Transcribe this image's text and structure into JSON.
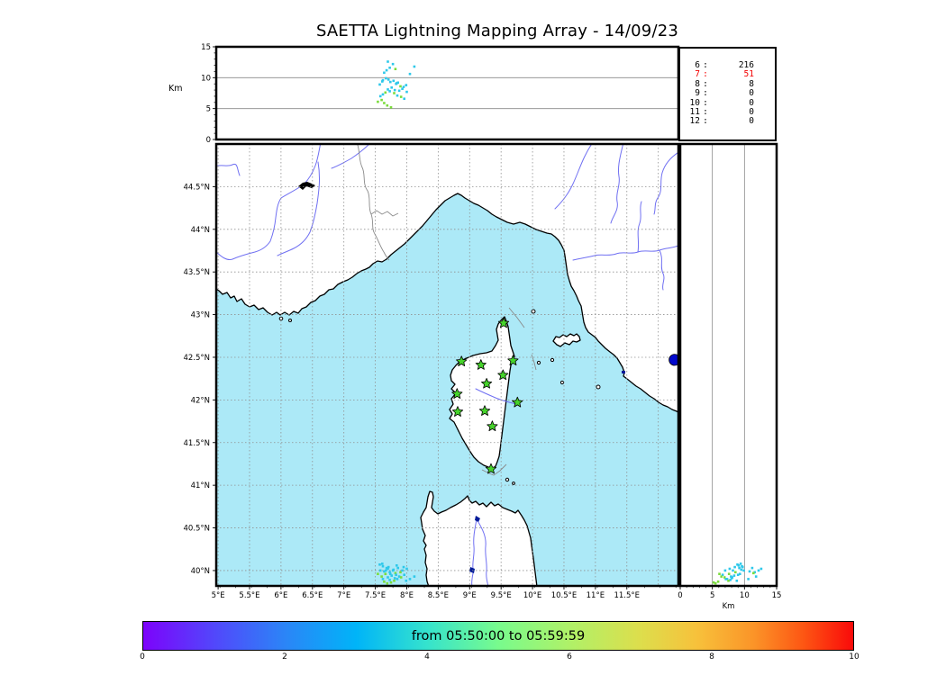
{
  "header": {
    "title": "SAETTA Lightning Mapping Array - 14/09/23"
  },
  "station_table": {
    "rows": [
      {
        "station": "6",
        "count": "216",
        "highlight": false
      },
      {
        "station": "7",
        "count": "51",
        "highlight": true
      },
      {
        "station": "8",
        "count": "8",
        "highlight": false
      },
      {
        "station": "9",
        "count": "0",
        "highlight": false
      },
      {
        "station": "10",
        "count": "0",
        "highlight": false
      },
      {
        "station": "11",
        "count": "0",
        "highlight": false
      },
      {
        "station": "12",
        "count": "0",
        "highlight": false
      }
    ],
    "highlight_color": "#f20000"
  },
  "colorbar": {
    "label": "from 05:50:00 to 05:59:59",
    "ticks": [
      "0",
      "2",
      "4",
      "6",
      "8",
      "10"
    ],
    "range": [
      0,
      10
    ],
    "colormap": "rainbow"
  },
  "chart_data": {
    "type": "scatter",
    "title": "SAETTA Lightning Mapping Array - 14/09/23",
    "map": {
      "xlim": [
        4.97,
        12.32
      ],
      "ylim": [
        39.82,
        45.0
      ],
      "sea_color": "#ace9f7",
      "land_color": "#ffffff",
      "grid": true,
      "lon_ticks": [
        {
          "v": 5,
          "label": "5°E"
        },
        {
          "v": 5.5,
          "label": "5.5°E"
        },
        {
          "v": 6,
          "label": "6°E"
        },
        {
          "v": 6.5,
          "label": "6.5°E"
        },
        {
          "v": 7,
          "label": "7°E"
        },
        {
          "v": 7.5,
          "label": "7.5°E"
        },
        {
          "v": 8,
          "label": "8°E"
        },
        {
          "v": 8.5,
          "label": "8.5°E"
        },
        {
          "v": 9,
          "label": "9°E"
        },
        {
          "v": 9.5,
          "label": "9.5°E"
        },
        {
          "v": 10,
          "label": "10°E"
        },
        {
          "v": 10.5,
          "label": "10.5°E"
        },
        {
          "v": 11,
          "label": "11°E"
        },
        {
          "v": 11.5,
          "label": "11.5°E"
        },
        {
          "v": 12,
          "label": ""
        }
      ],
      "lat_ticks": [
        {
          "v": 44.5,
          "label": "44.5°N"
        },
        {
          "v": 44,
          "label": "44°N"
        },
        {
          "v": 43.5,
          "label": "43.5°N"
        },
        {
          "v": 43,
          "label": "43°N"
        },
        {
          "v": 42.5,
          "label": "42.5°N"
        },
        {
          "v": 42,
          "label": "42°N"
        },
        {
          "v": 41.5,
          "label": "41.5°N"
        },
        {
          "v": 41,
          "label": "41°N"
        },
        {
          "v": 40.5,
          "label": "40.5°N"
        },
        {
          "v": 40,
          "label": "40°N"
        }
      ]
    },
    "alt_axis": {
      "lim": [
        0,
        15
      ],
      "label": "Km",
      "ticks": [
        {
          "v": 0,
          "label": "0"
        },
        {
          "v": 5,
          "label": "5"
        },
        {
          "v": 10,
          "label": "10"
        },
        {
          "v": 15,
          "label": "15"
        }
      ],
      "gridlines": [
        5,
        10
      ]
    },
    "stations": {
      "marker": "star",
      "color": "#46d32b",
      "points": [
        [
          9.54,
          42.9
        ],
        [
          8.87,
          42.45
        ],
        [
          9.18,
          42.41
        ],
        [
          9.69,
          42.46
        ],
        [
          9.53,
          42.29
        ],
        [
          9.27,
          42.19
        ],
        [
          8.8,
          42.07
        ],
        [
          9.76,
          41.97
        ],
        [
          8.81,
          41.86
        ],
        [
          9.24,
          41.87
        ],
        [
          9.36,
          41.69
        ],
        [
          9.34,
          41.19
        ]
      ]
    },
    "sources": {
      "note": "lightning VHF sources [lon, lat, alt_km, color_key]",
      "colors": {
        "c": "#2dc8ea",
        "g": "#7bdc3c"
      },
      "points": [
        [
          7.7,
          40.02,
          12.6,
          "c"
        ],
        [
          7.78,
          40.0,
          12.2,
          "c"
        ],
        [
          7.73,
          39.98,
          11.6,
          "c"
        ],
        [
          7.68,
          40.03,
          11.2,
          "c"
        ],
        [
          7.82,
          39.97,
          11.4,
          "g"
        ],
        [
          7.64,
          39.99,
          10.8,
          "c"
        ],
        [
          7.62,
          40.05,
          9.6,
          "c"
        ],
        [
          7.67,
          40.0,
          9.9,
          "c"
        ],
        [
          7.71,
          40.04,
          9.7,
          "c"
        ],
        [
          7.74,
          39.96,
          9.3,
          "c"
        ],
        [
          7.79,
          40.01,
          9.5,
          "c"
        ],
        [
          7.83,
          39.95,
          9.0,
          "c"
        ],
        [
          7.86,
          40.03,
          9.2,
          "c"
        ],
        [
          7.9,
          39.98,
          8.6,
          "g"
        ],
        [
          7.93,
          40.0,
          8.2,
          "c"
        ],
        [
          7.88,
          39.93,
          7.9,
          "c"
        ],
        [
          7.81,
          39.91,
          8.0,
          "c"
        ],
        [
          7.76,
          39.94,
          8.4,
          "c"
        ],
        [
          7.7,
          39.92,
          8.1,
          "c"
        ],
        [
          7.66,
          39.96,
          7.6,
          "g"
        ],
        [
          7.62,
          39.9,
          7.3,
          "c"
        ],
        [
          7.73,
          39.89,
          7.8,
          "c"
        ],
        [
          7.8,
          39.88,
          7.5,
          "g"
        ],
        [
          7.85,
          39.9,
          7.1,
          "c"
        ],
        [
          7.91,
          39.92,
          6.9,
          "g"
        ],
        [
          7.96,
          39.95,
          6.6,
          "c"
        ],
        [
          7.6,
          39.93,
          6.4,
          "g"
        ],
        [
          7.64,
          39.87,
          5.9,
          "g"
        ],
        [
          7.69,
          39.85,
          5.5,
          "g"
        ],
        [
          7.75,
          39.86,
          5.2,
          "g"
        ],
        [
          7.99,
          39.88,
          8.8,
          "c"
        ],
        [
          8.05,
          39.9,
          10.6,
          "c"
        ],
        [
          8.12,
          39.93,
          11.8,
          "c"
        ],
        [
          7.57,
          40.07,
          8.9,
          "c"
        ],
        [
          7.61,
          40.08,
          9.4,
          "c"
        ],
        [
          7.84,
          40.06,
          9.1,
          "c"
        ],
        [
          7.95,
          40.04,
          8.5,
          "c"
        ],
        [
          8.0,
          40.02,
          7.7,
          "c"
        ],
        [
          7.54,
          39.96,
          6.1,
          "g"
        ],
        [
          7.58,
          40.0,
          7.0,
          "c"
        ]
      ]
    },
    "extra_markers": {
      "blue_dot": {
        "lon": 12.26,
        "lat": 42.47,
        "color": "#0008cc",
        "r": 6.2
      }
    }
  }
}
